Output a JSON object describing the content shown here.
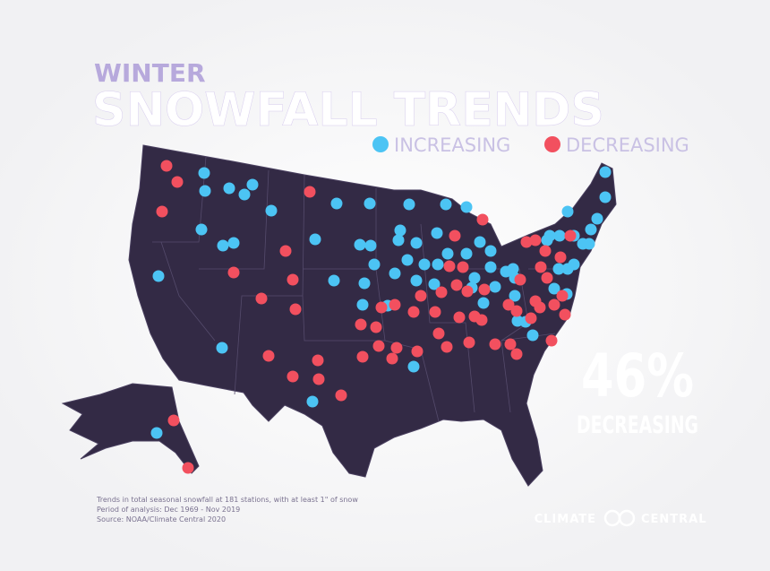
{
  "header": {
    "kicker": "WINTER",
    "title": "SNOWFALL TRENDS"
  },
  "legend": [
    {
      "label": "INCREASING",
      "color": "#4cc4f4"
    },
    {
      "label": "DECREASING",
      "color": "#f2505f"
    }
  ],
  "stat": {
    "value": "46%",
    "label": "DECREASING"
  },
  "footnote": [
    "Trends in total seasonal snowfall at 181 stations, with at least 1\" of snow",
    "Period of analysis: Dec 1969 - Nov 2019",
    "Source: NOAA/Climate Central 2020"
  ],
  "brand": {
    "left": "CLIMATE",
    "right": "CENTRAL"
  }
}
